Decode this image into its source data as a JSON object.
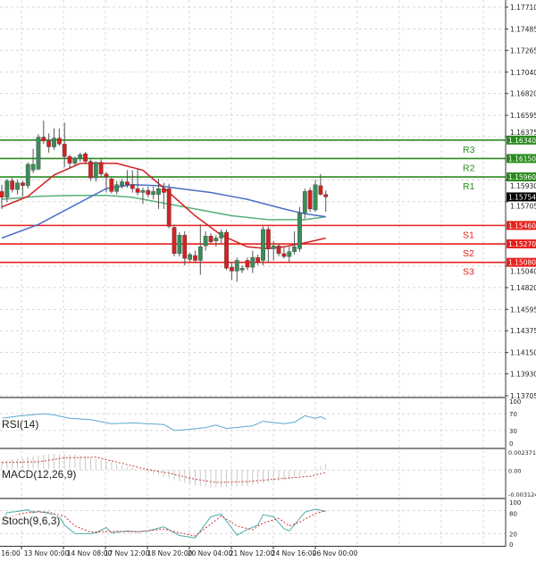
{
  "instrument_chart": {
    "type": "candlestick",
    "colors": {
      "bull": "#3c8c5a",
      "bear": "#d42020",
      "support": "#e8201c",
      "resistance": "#2a8a1e",
      "ma_fast": "#d42020",
      "ma_mid": "#4a6fc8",
      "ma_slow": "#55b07a",
      "current_tag": "#000000"
    },
    "current_price": "1.15754",
    "price_axis": [
      "1.17710",
      "1.17485",
      "1.17265",
      "1.17040",
      "1.16820",
      "1.16595",
      "1.16375",
      "1.15930",
      "1.15705",
      "1.15040",
      "1.14820",
      "1.14595",
      "1.14375",
      "1.14150",
      "1.13930",
      "1.13705"
    ],
    "price_range": [
      1.13705,
      1.1771
    ],
    "time_axis": [
      "16:00",
      "13 Nov 00:00",
      "14 Nov 08:00",
      "17 Nov 12:00",
      "18 Nov 20:00",
      "20 Nov 04:00",
      "21 Nov 12:00",
      "24 Nov 16:00",
      "26 Nov 00:00"
    ],
    "levels": [
      {
        "name": "R3",
        "value": "1.16340",
        "kind": "resistance"
      },
      {
        "name": "R2",
        "value": "1.16150",
        "kind": "resistance"
      },
      {
        "name": "R1",
        "value": "1.15960",
        "kind": "resistance"
      },
      {
        "name": "S1",
        "value": "1.15460",
        "kind": "support"
      },
      {
        "name": "S2",
        "value": "1.15270",
        "kind": "support"
      },
      {
        "name": "S3",
        "value": "1.15080",
        "kind": "support"
      }
    ],
    "candles_ohlc": [
      [
        1.1581,
        1.1588,
        1.1563,
        1.1575
      ],
      [
        1.1575,
        1.1594,
        1.157,
        1.1592
      ],
      [
        1.1592,
        1.1595,
        1.158,
        1.1583
      ],
      [
        1.1583,
        1.1593,
        1.1578,
        1.159
      ],
      [
        1.159,
        1.1592,
        1.1576,
        1.1587
      ],
      [
        1.1587,
        1.1611,
        1.1584,
        1.1609
      ],
      [
        1.1603,
        1.1625,
        1.16,
        1.1609
      ],
      [
        1.1604,
        1.164,
        1.1603,
        1.1637
      ],
      [
        1.1637,
        1.1654,
        1.163,
        1.1633
      ],
      [
        1.1633,
        1.1641,
        1.1621,
        1.1627
      ],
      [
        1.1627,
        1.1646,
        1.1624,
        1.1636
      ],
      [
        1.1636,
        1.1646,
        1.1628,
        1.163
      ],
      [
        1.163,
        1.1652,
        1.1606,
        1.1617
      ],
      [
        1.1617,
        1.1619,
        1.1605,
        1.161
      ],
      [
        1.161,
        1.1617,
        1.1607,
        1.1615
      ],
      [
        1.1615,
        1.1621,
        1.1612,
        1.1619
      ],
      [
        1.162,
        1.1622,
        1.1609,
        1.1612
      ],
      [
        1.1612,
        1.1614,
        1.1592,
        1.1595
      ],
      [
        1.1595,
        1.1612,
        1.1591,
        1.1611
      ],
      [
        1.1611,
        1.1614,
        1.1596,
        1.1599
      ],
      [
        1.1599,
        1.1601,
        1.158,
        1.1596
      ],
      [
        1.1594,
        1.1596,
        1.1579,
        1.1581
      ],
      [
        1.1581,
        1.1592,
        1.1578,
        1.1588
      ],
      [
        1.1587,
        1.1594,
        1.1584,
        1.1591
      ],
      [
        1.1591,
        1.1603,
        1.1585,
        1.1588
      ],
      [
        1.1588,
        1.1603,
        1.158,
        1.1584
      ],
      [
        1.1584,
        1.1605,
        1.1577,
        1.158
      ],
      [
        1.158,
        1.1585,
        1.1568,
        1.1582
      ],
      [
        1.1582,
        1.1586,
        1.1575,
        1.1578
      ],
      [
        1.1578,
        1.1586,
        1.1573,
        1.1581
      ],
      [
        1.1578,
        1.1594,
        1.1563,
        1.1584
      ],
      [
        1.1584,
        1.159,
        1.1563,
        1.158
      ],
      [
        1.1584,
        1.1589,
        1.1543,
        1.1545
      ],
      [
        1.1544,
        1.1547,
        1.1514,
        1.1517
      ],
      [
        1.1517,
        1.1539,
        1.1514,
        1.1536
      ],
      [
        1.1536,
        1.154,
        1.1505,
        1.1512
      ],
      [
        1.1511,
        1.1518,
        1.1508,
        1.1516
      ],
      [
        1.1515,
        1.152,
        1.1508,
        1.151
      ],
      [
        1.151,
        1.1547,
        1.1495,
        1.1524
      ],
      [
        1.1525,
        1.154,
        1.152,
        1.1535
      ],
      [
        1.1535,
        1.1538,
        1.1527,
        1.1529
      ],
      [
        1.153,
        1.1536,
        1.1524,
        1.1533
      ],
      [
        1.1533,
        1.1542,
        1.1527,
        1.1539
      ],
      [
        1.1539,
        1.1542,
        1.15,
        1.1502
      ],
      [
        1.1503,
        1.1508,
        1.149,
        1.1499
      ],
      [
        1.1499,
        1.1513,
        1.1488,
        1.151
      ],
      [
        1.15,
        1.1505,
        1.1497,
        1.1502
      ],
      [
        1.151,
        1.1513,
        1.15,
        1.1503
      ],
      [
        1.1503,
        1.152,
        1.1497,
        1.1513
      ],
      [
        1.1513,
        1.1516,
        1.1505,
        1.1508
      ],
      [
        1.151,
        1.1545,
        1.1505,
        1.1542
      ],
      [
        1.1542,
        1.1545,
        1.1508,
        1.1522
      ],
      [
        1.1522,
        1.153,
        1.151,
        1.1525
      ],
      [
        1.1525,
        1.1527,
        1.1514,
        1.1517
      ],
      [
        1.1517,
        1.1525,
        1.1512,
        1.1514
      ],
      [
        1.1514,
        1.1524,
        1.1508,
        1.1519
      ],
      [
        1.1519,
        1.154,
        1.1516,
        1.1524
      ],
      [
        1.1522,
        1.1565,
        1.1519,
        1.1559
      ],
      [
        1.1559,
        1.1584,
        1.1553,
        1.1581
      ],
      [
        1.1582,
        1.1585,
        1.156,
        1.1563
      ],
      [
        1.1562,
        1.1593,
        1.156,
        1.1588
      ],
      [
        1.1587,
        1.1599,
        1.1577,
        1.1578
      ],
      [
        1.1578,
        1.1582,
        1.156,
        1.15754
      ]
    ],
    "moving_averages": {
      "fast": [
        [
          1,
          1.1565
        ],
        [
          6,
          1.1576
        ],
        [
          11,
          1.1598
        ],
        [
          16,
          1.161
        ],
        [
          23,
          1.161
        ],
        [
          28,
          1.1603
        ],
        [
          33,
          1.158
        ],
        [
          38,
          1.1556
        ],
        [
          43,
          1.1536
        ],
        [
          48,
          1.1524
        ],
        [
          52,
          1.1522
        ],
        [
          55,
          1.1524
        ],
        [
          59,
          1.1528
        ],
        [
          63,
          1.1533
        ]
      ],
      "mid": [
        [
          1,
          1.1533
        ],
        [
          8,
          1.1547
        ],
        [
          15,
          1.1567
        ],
        [
          21,
          1.1584
        ],
        [
          26,
          1.1588
        ],
        [
          31,
          1.1587
        ],
        [
          35,
          1.1584
        ],
        [
          41,
          1.158
        ],
        [
          48,
          1.1573
        ],
        [
          55,
          1.1563
        ],
        [
          59,
          1.1558
        ],
        [
          63,
          1.1555
        ]
      ],
      "slow": [
        [
          1,
          1.1573
        ],
        [
          8,
          1.1576
        ],
        [
          15,
          1.1577
        ],
        [
          21,
          1.1577
        ],
        [
          26,
          1.1575
        ],
        [
          31,
          1.157
        ],
        [
          38,
          1.1563
        ],
        [
          45,
          1.1556
        ],
        [
          52,
          1.1552
        ],
        [
          59,
          1.1552
        ],
        [
          63,
          1.1555
        ]
      ]
    }
  },
  "rsi": {
    "title": "RSI(14)",
    "axis": [
      "100",
      "70",
      "30",
      "0"
    ],
    "color": "#5aa8d0",
    "points": [
      [
        1,
        59
      ],
      [
        4,
        64
      ],
      [
        9,
        70
      ],
      [
        11,
        67
      ],
      [
        14,
        59
      ],
      [
        18,
        56
      ],
      [
        22,
        46
      ],
      [
        26,
        48
      ],
      [
        32,
        44
      ],
      [
        34,
        30
      ],
      [
        37,
        33
      ],
      [
        40,
        37
      ],
      [
        42,
        43
      ],
      [
        44,
        35
      ],
      [
        49,
        41
      ],
      [
        51,
        52
      ],
      [
        55,
        46
      ],
      [
        57,
        50
      ],
      [
        59,
        65
      ],
      [
        61,
        59
      ],
      [
        62,
        63
      ],
      [
        63,
        57
      ]
    ]
  },
  "macd": {
    "title": "MACD(12,26,9)",
    "axis": [
      "0.002371",
      "0.00",
      "-0.003124"
    ],
    "range": [
      -0.003124,
      0.002371
    ],
    "histogram_color": "#c8c8c8",
    "signal_color": "#c04040",
    "histogram": [
      [
        1,
        0.0012
      ],
      [
        5,
        0.0016
      ],
      [
        10,
        0.0021
      ],
      [
        15,
        0.0021
      ],
      [
        19,
        0.0015
      ],
      [
        23,
        0.0008
      ],
      [
        27,
        0.0001
      ],
      [
        31,
        -0.0006
      ],
      [
        35,
        -0.0015
      ],
      [
        38,
        -0.002
      ],
      [
        41,
        -0.0023
      ],
      [
        44,
        -0.0022
      ],
      [
        48,
        -0.0021
      ],
      [
        52,
        -0.0016
      ],
      [
        56,
        -0.0012
      ],
      [
        59,
        -0.0004
      ],
      [
        61,
        0.0003
      ],
      [
        63,
        0.0008
      ]
    ],
    "signal": [
      [
        1,
        0.001
      ],
      [
        8,
        0.0011
      ],
      [
        13,
        0.0016
      ],
      [
        19,
        0.0017
      ],
      [
        24,
        0.0009
      ],
      [
        28,
        0.0002
      ],
      [
        33,
        -0.0004
      ],
      [
        38,
        -0.0012
      ],
      [
        42,
        -0.0016
      ],
      [
        48,
        -0.0015
      ],
      [
        53,
        -0.0012
      ],
      [
        60,
        -0.0008
      ],
      [
        63,
        -0.0003
      ]
    ]
  },
  "stoch": {
    "title": "Stoch(9,6,3)",
    "axis": [
      "100",
      "80",
      "20",
      "0"
    ],
    "main_color": "#4aaea8",
    "signal_color": "#d03030",
    "main": [
      [
        1,
        42
      ],
      [
        2,
        75
      ],
      [
        4,
        78
      ],
      [
        6,
        82
      ],
      [
        7,
        75
      ],
      [
        8,
        78
      ],
      [
        10,
        73
      ],
      [
        12,
        65
      ],
      [
        13,
        42
      ],
      [
        15,
        20
      ],
      [
        18,
        20
      ],
      [
        19,
        22
      ],
      [
        21,
        36
      ],
      [
        22,
        22
      ],
      [
        25,
        27
      ],
      [
        27,
        25
      ],
      [
        29,
        27
      ],
      [
        32,
        38
      ],
      [
        35,
        15
      ],
      [
        38,
        9
      ],
      [
        41,
        64
      ],
      [
        43,
        71
      ],
      [
        46,
        16
      ],
      [
        48,
        31
      ],
      [
        50,
        42
      ],
      [
        51,
        69
      ],
      [
        53,
        64
      ],
      [
        55,
        33
      ],
      [
        56,
        27
      ],
      [
        59,
        76
      ],
      [
        61,
        84
      ],
      [
        63,
        78
      ]
    ],
    "signal": [
      [
        1,
        55
      ],
      [
        4,
        70
      ],
      [
        7,
        77
      ],
      [
        10,
        76
      ],
      [
        13,
        65
      ],
      [
        15,
        40
      ],
      [
        18,
        24
      ],
      [
        22,
        26
      ],
      [
        27,
        25
      ],
      [
        32,
        32
      ],
      [
        35,
        22
      ],
      [
        38,
        14
      ],
      [
        41,
        45
      ],
      [
        43,
        66
      ],
      [
        46,
        40
      ],
      [
        49,
        30
      ],
      [
        51,
        48
      ],
      [
        54,
        60
      ],
      [
        56,
        40
      ],
      [
        58,
        50
      ],
      [
        61,
        72
      ],
      [
        63,
        80
      ]
    ]
  }
}
